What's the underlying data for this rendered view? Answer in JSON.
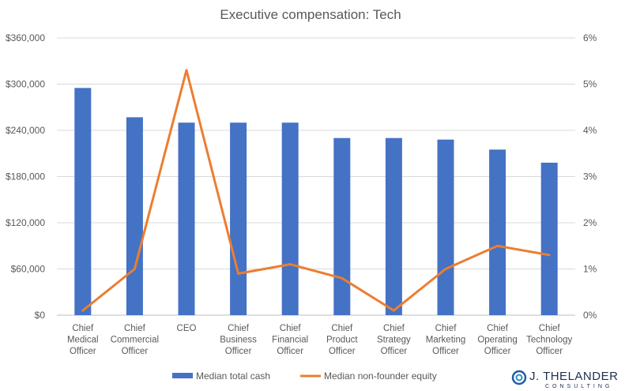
{
  "chart_data": {
    "type": "bar+line",
    "title": "Executive compensation: Tech",
    "categories": [
      [
        "Chief",
        "Medical",
        "Officer"
      ],
      [
        "Chief",
        "Commercial",
        "Officer"
      ],
      [
        "CEO"
      ],
      [
        "Chief",
        "Business",
        "Officer"
      ],
      [
        "Chief",
        "Financial",
        "Officer"
      ],
      [
        "Chief",
        "Product",
        "Officer"
      ],
      [
        "Chief",
        "Strategy",
        "Officer"
      ],
      [
        "Chief",
        "Marketing",
        "Officer"
      ],
      [
        "Chief",
        "Operating",
        "Officer"
      ],
      [
        "Chief",
        "Technology",
        "Officer"
      ]
    ],
    "series": [
      {
        "name": "Median total cash",
        "type": "bar",
        "axis": "left",
        "color": "#4472c4",
        "values": [
          295000,
          257000,
          250000,
          250000,
          250000,
          230000,
          230000,
          228000,
          215000,
          198000
        ]
      },
      {
        "name": "Median non-founder equity",
        "type": "line",
        "axis": "right",
        "color": "#ed7d31",
        "values": [
          0.1,
          1.0,
          5.3,
          0.9,
          1.1,
          0.8,
          0.1,
          1.0,
          1.5,
          1.3
        ]
      }
    ],
    "y_left": {
      "min": 0,
      "max": 360000,
      "ticks": [
        0,
        60000,
        120000,
        180000,
        240000,
        300000,
        360000
      ],
      "tick_labels": [
        "$0",
        "$60,000",
        "$120,000",
        "$180,000",
        "$240,000",
        "$300,000",
        "$360,000"
      ]
    },
    "y_right": {
      "min": 0,
      "max": 6,
      "ticks": [
        0,
        1,
        2,
        3,
        4,
        5,
        6
      ],
      "tick_labels": [
        "0%",
        "1%",
        "2%",
        "3%",
        "4%",
        "5%",
        "6%"
      ]
    },
    "grid": true,
    "legend_position": "bottom"
  },
  "logo": {
    "name": "J. THELANDER",
    "subtitle": "CONSULTING"
  }
}
